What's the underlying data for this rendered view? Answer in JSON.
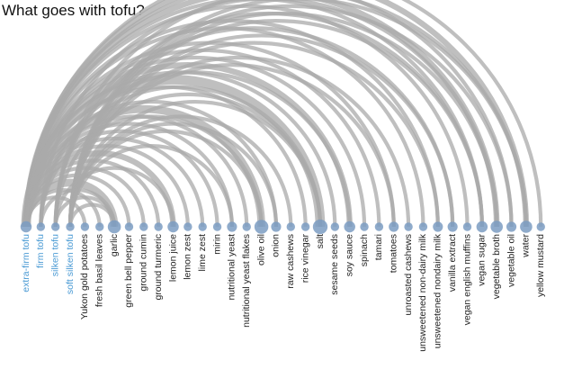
{
  "title": "What goes with tofu?",
  "colors": {
    "arc": "#a9a9a9",
    "node": "#7b9cc2",
    "tofu_label": "#4a9ad4",
    "label": "#222222"
  },
  "chart_data": {
    "type": "arc-diagram",
    "nodes": [
      {
        "name": "extra-firm tofu",
        "group": "tofu",
        "weight": 3
      },
      {
        "name": "firm tofu",
        "group": "tofu",
        "weight": 1
      },
      {
        "name": "silken tofu",
        "group": "tofu",
        "weight": 1
      },
      {
        "name": "soft silken tofu",
        "group": "tofu",
        "weight": 1
      },
      {
        "name": "Yukon gold potatoes",
        "group": "ingredient",
        "weight": 1
      },
      {
        "name": "fresh basil leaves",
        "group": "ingredient",
        "weight": 1
      },
      {
        "name": "garlic",
        "group": "ingredient",
        "weight": 5
      },
      {
        "name": "green bell pepper",
        "group": "ingredient",
        "weight": 1
      },
      {
        "name": "ground cumin",
        "group": "ingredient",
        "weight": 1
      },
      {
        "name": "ground turmeric",
        "group": "ingredient",
        "weight": 1
      },
      {
        "name": "lemon juice",
        "group": "ingredient",
        "weight": 3
      },
      {
        "name": "lemon zest",
        "group": "ingredient",
        "weight": 1
      },
      {
        "name": "lime zest",
        "group": "ingredient",
        "weight": 1
      },
      {
        "name": "mirin",
        "group": "ingredient",
        "weight": 1
      },
      {
        "name": "nutritional yeast",
        "group": "ingredient",
        "weight": 2
      },
      {
        "name": "nutritional yeast flakes",
        "group": "ingredient",
        "weight": 1
      },
      {
        "name": "olive oil",
        "group": "ingredient",
        "weight": 6
      },
      {
        "name": "onion",
        "group": "ingredient",
        "weight": 2
      },
      {
        "name": "raw cashews",
        "group": "ingredient",
        "weight": 1
      },
      {
        "name": "rice vinegar",
        "group": "ingredient",
        "weight": 1
      },
      {
        "name": "salt",
        "group": "ingredient",
        "weight": 7
      },
      {
        "name": "sesame seeds",
        "group": "ingredient",
        "weight": 1
      },
      {
        "name": "soy sauce",
        "group": "ingredient",
        "weight": 3
      },
      {
        "name": "spinach",
        "group": "ingredient",
        "weight": 1
      },
      {
        "name": "tamari",
        "group": "ingredient",
        "weight": 1
      },
      {
        "name": "tomatoes",
        "group": "ingredient",
        "weight": 2
      },
      {
        "name": "unroasted cashews",
        "group": "ingredient",
        "weight": 1
      },
      {
        "name": "unsweetened non-dairy milk",
        "group": "ingredient",
        "weight": 1
      },
      {
        "name": "unsweetened nondairy milk",
        "group": "ingredient",
        "weight": 2
      },
      {
        "name": "vanilla extract",
        "group": "ingredient",
        "weight": 2
      },
      {
        "name": "vegan english muffins",
        "group": "ingredient",
        "weight": 1
      },
      {
        "name": "vegan sugar",
        "group": "ingredient",
        "weight": 3
      },
      {
        "name": "vegetable broth",
        "group": "ingredient",
        "weight": 4
      },
      {
        "name": "vegetable oil",
        "group": "ingredient",
        "weight": 2
      },
      {
        "name": "water",
        "group": "ingredient",
        "weight": 4
      },
      {
        "name": "yellow mustard",
        "group": "ingredient",
        "weight": 1
      }
    ],
    "links": [
      {
        "source": "extra-firm tofu",
        "target": "Yukon gold potatoes",
        "value": 1
      },
      {
        "source": "extra-firm tofu",
        "target": "fresh basil leaves",
        "value": 1
      },
      {
        "source": "extra-firm tofu",
        "target": "garlic",
        "value": 3
      },
      {
        "source": "extra-firm tofu",
        "target": "green bell pepper",
        "value": 1
      },
      {
        "source": "extra-firm tofu",
        "target": "ground cumin",
        "value": 1
      },
      {
        "source": "extra-firm tofu",
        "target": "ground turmeric",
        "value": 1
      },
      {
        "source": "extra-firm tofu",
        "target": "lemon juice",
        "value": 2
      },
      {
        "source": "extra-firm tofu",
        "target": "lemon zest",
        "value": 1
      },
      {
        "source": "extra-firm tofu",
        "target": "lime zest",
        "value": 1
      },
      {
        "source": "extra-firm tofu",
        "target": "mirin",
        "value": 1
      },
      {
        "source": "extra-firm tofu",
        "target": "nutritional yeast",
        "value": 1
      },
      {
        "source": "extra-firm tofu",
        "target": "nutritional yeast flakes",
        "value": 1
      },
      {
        "source": "extra-firm tofu",
        "target": "olive oil",
        "value": 3
      },
      {
        "source": "extra-firm tofu",
        "target": "onion",
        "value": 1
      },
      {
        "source": "extra-firm tofu",
        "target": "rice vinegar",
        "value": 1
      },
      {
        "source": "extra-firm tofu",
        "target": "salt",
        "value": 4
      },
      {
        "source": "extra-firm tofu",
        "target": "sesame seeds",
        "value": 1
      },
      {
        "source": "extra-firm tofu",
        "target": "soy sauce",
        "value": 2
      },
      {
        "source": "extra-firm tofu",
        "target": "spinach",
        "value": 1
      },
      {
        "source": "extra-firm tofu",
        "target": "tamari",
        "value": 1
      },
      {
        "source": "extra-firm tofu",
        "target": "tomatoes",
        "value": 1
      },
      {
        "source": "extra-firm tofu",
        "target": "unsweetened non-dairy milk",
        "value": 1
      },
      {
        "source": "extra-firm tofu",
        "target": "unsweetened nondairy milk",
        "value": 1
      },
      {
        "source": "extra-firm tofu",
        "target": "vegan english muffins",
        "value": 1
      },
      {
        "source": "extra-firm tofu",
        "target": "vegan sugar",
        "value": 1
      },
      {
        "source": "extra-firm tofu",
        "target": "vegetable broth",
        "value": 2
      },
      {
        "source": "extra-firm tofu",
        "target": "vegetable oil",
        "value": 1
      },
      {
        "source": "extra-firm tofu",
        "target": "water",
        "value": 2
      },
      {
        "source": "extra-firm tofu",
        "target": "yellow mustard",
        "value": 1
      },
      {
        "source": "firm tofu",
        "target": "garlic",
        "value": 1
      },
      {
        "source": "firm tofu",
        "target": "olive oil",
        "value": 1
      },
      {
        "source": "firm tofu",
        "target": "salt",
        "value": 1
      },
      {
        "source": "firm tofu",
        "target": "soy sauce",
        "value": 1
      },
      {
        "source": "firm tofu",
        "target": "vegetable broth",
        "value": 1
      },
      {
        "source": "silken tofu",
        "target": "garlic",
        "value": 1
      },
      {
        "source": "silken tofu",
        "target": "lemon juice",
        "value": 1
      },
      {
        "source": "silken tofu",
        "target": "salt",
        "value": 1
      },
      {
        "source": "silken tofu",
        "target": "vanilla extract",
        "value": 1
      },
      {
        "source": "silken tofu",
        "target": "vegan sugar",
        "value": 1
      },
      {
        "source": "silken tofu",
        "target": "water",
        "value": 1
      },
      {
        "source": "soft silken tofu",
        "target": "garlic",
        "value": 1
      },
      {
        "source": "soft silken tofu",
        "target": "nutritional yeast",
        "value": 1
      },
      {
        "source": "soft silken tofu",
        "target": "olive oil",
        "value": 1
      },
      {
        "source": "soft silken tofu",
        "target": "raw cashews",
        "value": 1
      },
      {
        "source": "soft silken tofu",
        "target": "salt",
        "value": 1
      },
      {
        "source": "soft silken tofu",
        "target": "tomatoes",
        "value": 1
      },
      {
        "source": "soft silken tofu",
        "target": "unroasted cashews",
        "value": 1
      },
      {
        "source": "soft silken tofu",
        "target": "unsweetened nondairy milk",
        "value": 1
      },
      {
        "source": "soft silken tofu",
        "target": "vanilla extract",
        "value": 1
      },
      {
        "source": "soft silken tofu",
        "target": "vegan sugar",
        "value": 1
      },
      {
        "source": "soft silken tofu",
        "target": "vegetable broth",
        "value": 1
      },
      {
        "source": "soft silken tofu",
        "target": "vegetable oil",
        "value": 1
      },
      {
        "source": "soft silken tofu",
        "target": "water",
        "value": 1
      },
      {
        "source": "soft silken tofu",
        "target": "onion",
        "value": 1
      }
    ]
  }
}
